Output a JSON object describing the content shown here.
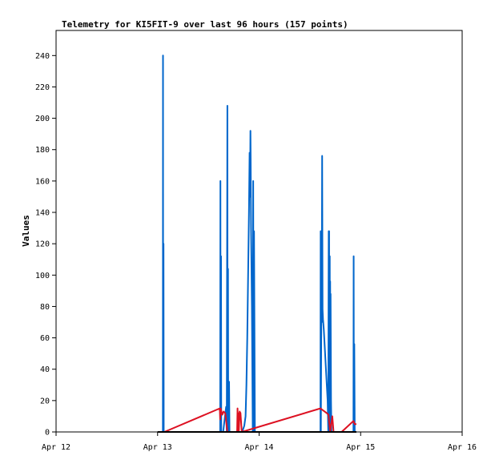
{
  "chart_data": {
    "type": "line",
    "title": "Telemetry for KI5FIT-9 over last 96 hours (157 points)",
    "xlabel": "",
    "ylabel": "Values",
    "ylim": [
      0,
      256
    ],
    "xlim": [
      0,
      96
    ],
    "x_ticks": [
      {
        "label": "Apr 12",
        "h": 0
      },
      {
        "label": "Apr 13",
        "h": 24
      },
      {
        "label": "Apr 14",
        "h": 48
      },
      {
        "label": "Apr 15",
        "h": 72
      },
      {
        "label": "Apr 16",
        "h": 96
      }
    ],
    "y_ticks": [
      0,
      20,
      40,
      60,
      80,
      100,
      120,
      140,
      160,
      180,
      200,
      220,
      240
    ],
    "grid": false,
    "legend": "none",
    "series": [
      {
        "color": "#0066cc",
        "points": [
          [
            24.3,
            0
          ],
          [
            24.7,
            0
          ],
          [
            25.25,
            0
          ],
          [
            25.28,
            240
          ],
          [
            25.31,
            0
          ],
          [
            25.4,
            120
          ],
          [
            25.45,
            0
          ],
          [
            30,
            0
          ],
          [
            36,
            0
          ],
          [
            38.8,
            0
          ],
          [
            38.85,
            160
          ],
          [
            38.9,
            0
          ],
          [
            39.0,
            112
          ],
          [
            39.05,
            0
          ],
          [
            39.5,
            0
          ],
          [
            40.2,
            16
          ],
          [
            40.35,
            0
          ],
          [
            40.5,
            208
          ],
          [
            40.55,
            0
          ],
          [
            40.65,
            104
          ],
          [
            40.7,
            0
          ],
          [
            40.9,
            32
          ],
          [
            41.0,
            0
          ],
          [
            43,
            0
          ],
          [
            44,
            0
          ],
          [
            44.5,
            4
          ],
          [
            44.8,
            10
          ],
          [
            45.0,
            30
          ],
          [
            45.2,
            60
          ],
          [
            45.4,
            100
          ],
          [
            45.6,
            140
          ],
          [
            45.75,
            178
          ],
          [
            45.85,
            150
          ],
          [
            45.95,
            192
          ],
          [
            46.0,
            175
          ],
          [
            46.1,
            130
          ],
          [
            46.3,
            80
          ],
          [
            46.5,
            0
          ],
          [
            46.6,
            160
          ],
          [
            46.7,
            0
          ],
          [
            46.8,
            128
          ],
          [
            46.9,
            65
          ],
          [
            47.0,
            0
          ],
          [
            50,
            0
          ],
          [
            55,
            0
          ],
          [
            60,
            0
          ],
          [
            62.5,
            0
          ],
          [
            62.55,
            128
          ],
          [
            62.6,
            0
          ],
          [
            62.7,
            72
          ],
          [
            62.8,
            70
          ],
          [
            62.9,
            176
          ],
          [
            63.0,
            78
          ],
          [
            63.1,
            72
          ],
          [
            63.3,
            65
          ],
          [
            63.6,
            50
          ],
          [
            63.9,
            35
          ],
          [
            64.2,
            20
          ],
          [
            64.35,
            0
          ],
          [
            64.45,
            128
          ],
          [
            64.5,
            60
          ],
          [
            64.55,
            128
          ],
          [
            64.6,
            0
          ],
          [
            64.7,
            112
          ],
          [
            64.75,
            0
          ],
          [
            64.8,
            96
          ],
          [
            64.85,
            40
          ],
          [
            64.9,
            88
          ],
          [
            65.0,
            20
          ],
          [
            65.1,
            0
          ],
          [
            67,
            0
          ],
          [
            70,
            0
          ],
          [
            70.3,
            0
          ],
          [
            70.35,
            112
          ],
          [
            70.4,
            0
          ],
          [
            70.5,
            56
          ],
          [
            70.6,
            0
          ],
          [
            71,
            0
          ]
        ]
      },
      {
        "color": "#dd1122",
        "points": [
          [
            24.2,
            0
          ],
          [
            25.6,
            0
          ],
          [
            38.7,
            15
          ],
          [
            38.8,
            8
          ],
          [
            38.9,
            15
          ],
          [
            39.3,
            11
          ],
          [
            39.6,
            13
          ],
          [
            40.0,
            12
          ],
          [
            40.5,
            0
          ],
          [
            42.8,
            0
          ],
          [
            42.9,
            15
          ],
          [
            43.0,
            0
          ],
          [
            43.1,
            12
          ],
          [
            43.2,
            0
          ],
          [
            43.4,
            13
          ],
          [
            43.6,
            12
          ],
          [
            43.9,
            0
          ],
          [
            62.5,
            15
          ],
          [
            63.5,
            13
          ],
          [
            64.0,
            12
          ],
          [
            64.4,
            11
          ],
          [
            64.8,
            0
          ],
          [
            65.3,
            10
          ],
          [
            65.6,
            0
          ],
          [
            67.5,
            0
          ],
          [
            69.5,
            5
          ],
          [
            70.3,
            7
          ],
          [
            70.6,
            5
          ],
          [
            71,
            5
          ]
        ]
      },
      {
        "color": "#000000",
        "points": [
          [
            24.0,
            0
          ],
          [
            71.0,
            0
          ]
        ]
      }
    ]
  }
}
